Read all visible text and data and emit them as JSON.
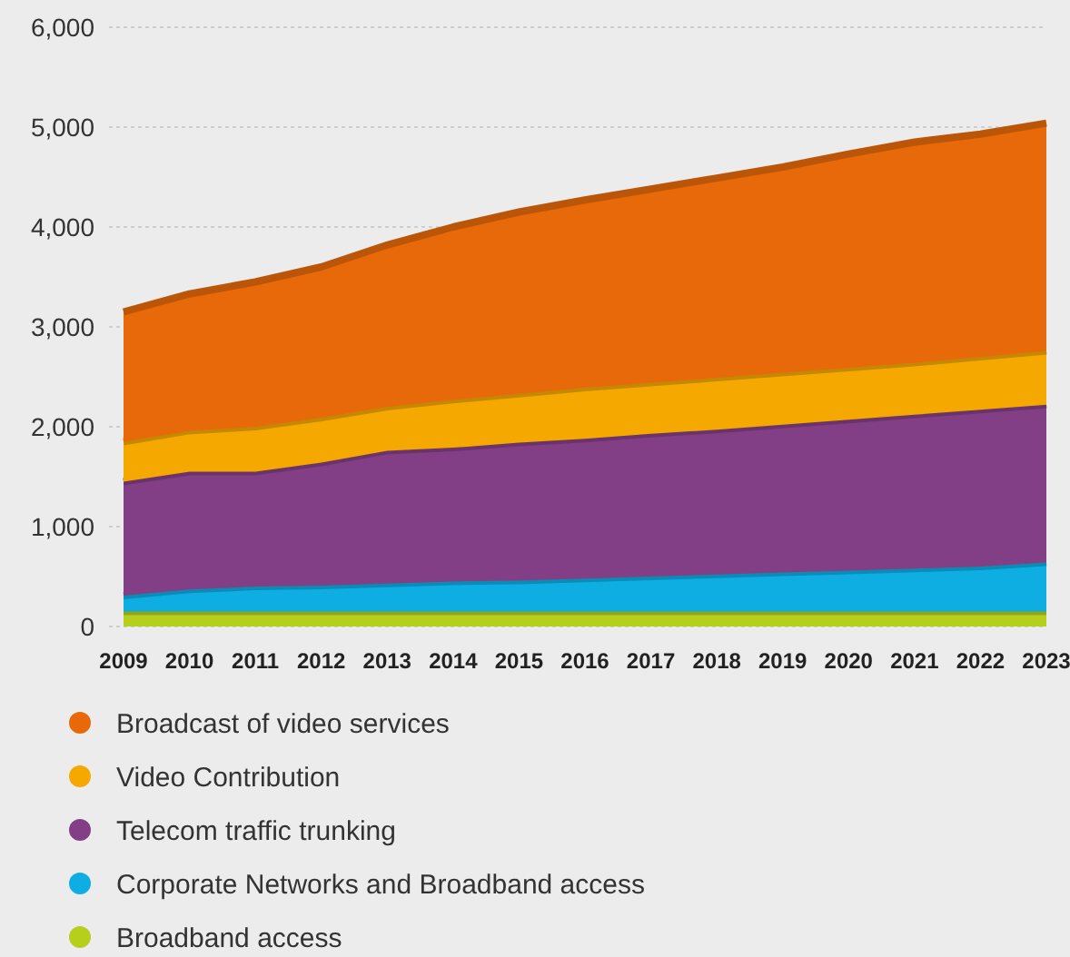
{
  "chart_data": {
    "type": "area",
    "stacked": true,
    "categories": [
      "2009",
      "2010",
      "2011",
      "2012",
      "2013",
      "2014",
      "2015",
      "2016",
      "2017",
      "2018",
      "2019",
      "2020",
      "2021",
      "2022",
      "2023"
    ],
    "series": [
      {
        "name": "Broadband access",
        "color": "#b5cf1c",
        "values": [
          150,
          150,
          150,
          150,
          150,
          150,
          150,
          150,
          150,
          150,
          150,
          150,
          150,
          150,
          150
        ]
      },
      {
        "name": "Corporate Networks and Broadband access",
        "color": "#0eaee3",
        "values": [
          160,
          220,
          250,
          260,
          280,
          300,
          310,
          330,
          350,
          370,
          390,
          410,
          430,
          450,
          490
        ]
      },
      {
        "name": "Telecom traffic trunking",
        "color": "#833f85",
        "values": [
          1140,
          1180,
          1150,
          1230,
          1330,
          1340,
          1380,
          1400,
          1430,
          1450,
          1480,
          1510,
          1540,
          1570,
          1580
        ]
      },
      {
        "name": "Video Contribution",
        "color": "#f5a800",
        "values": [
          400,
          410,
          450,
          450,
          440,
          480,
          490,
          510,
          510,
          520,
          520,
          520,
          520,
          530,
          540
        ]
      },
      {
        "name": "Broadcast of video services",
        "color": "#e8690a",
        "values": [
          1300,
          1370,
          1450,
          1510,
          1620,
          1730,
          1820,
          1880,
          1940,
          2000,
          2060,
          2140,
          2210,
          2230,
          2280
        ]
      }
    ],
    "ylim": [
      0,
      6000
    ],
    "yticks": [
      {
        "value": 0,
        "label": "0"
      },
      {
        "value": 1000,
        "label": "1,000"
      },
      {
        "value": 2000,
        "label": "2,000"
      },
      {
        "value": 3000,
        "label": "3,000"
      },
      {
        "value": 4000,
        "label": "4,000"
      },
      {
        "value": 5000,
        "label": "5,000"
      },
      {
        "value": 6000,
        "label": "6,000"
      }
    ],
    "grid": "y",
    "legend": "bottom"
  }
}
